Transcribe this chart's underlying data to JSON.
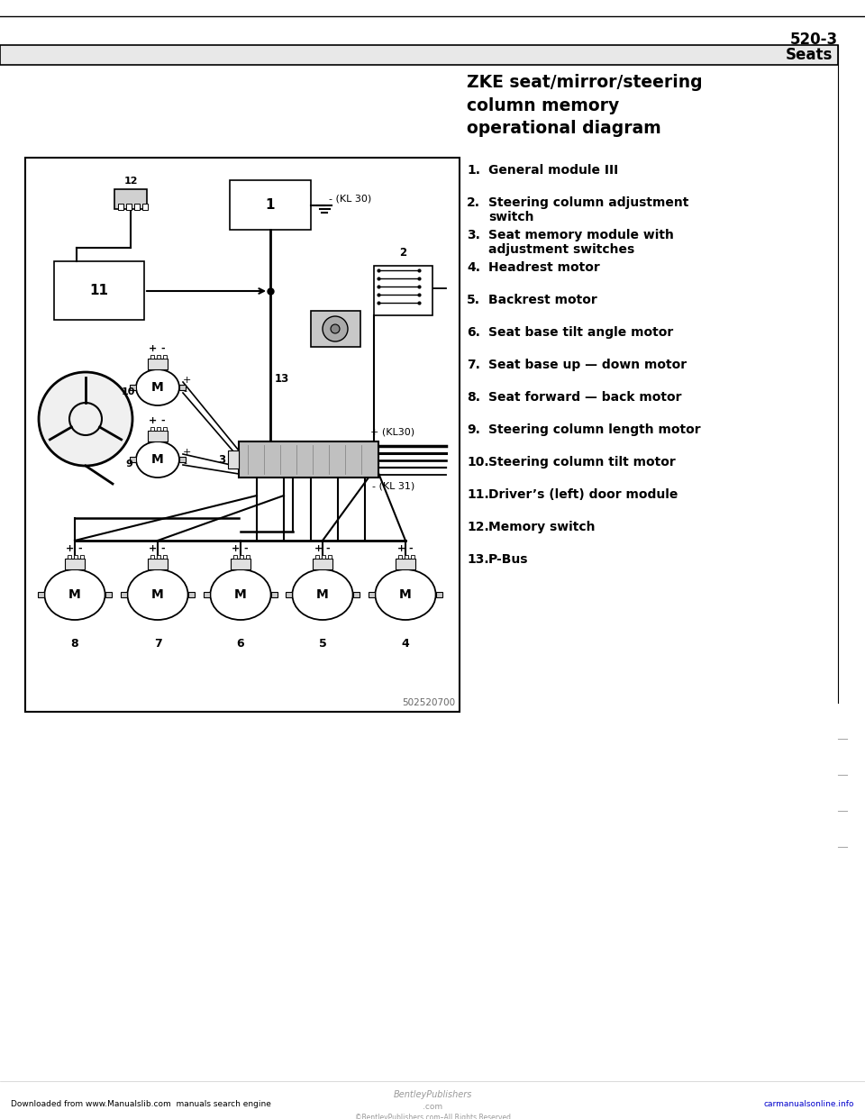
{
  "page_number": "520-3",
  "section_title": "Seats",
  "diagram_title": "ZKE seat/mirror/steering\ncolumn memory\noperational diagram",
  "legend_items": [
    {
      "num": "1.",
      "text": "General module III"
    },
    {
      "num": "2.",
      "text": "Steering column adjustment\nswitch"
    },
    {
      "num": "3.",
      "text": "Seat memory module with\nadjustment switches"
    },
    {
      "num": "4.",
      "text": "Headrest motor"
    },
    {
      "num": "5.",
      "text": "Backrest motor"
    },
    {
      "num": "6.",
      "text": "Seat base tilt angle motor"
    },
    {
      "num": "7.",
      "text": "Seat base up — down motor"
    },
    {
      "num": "8.",
      "text": "Seat forward — back motor"
    },
    {
      "num": "9.",
      "text": "Steering column length motor"
    },
    {
      "num": "10.",
      "text": "Steering column tilt motor"
    },
    {
      "num": "11.",
      "text": "Driver’s (left) door module"
    },
    {
      "num": "12.",
      "text": "Memory switch"
    },
    {
      "num": "13.",
      "text": "P-Bus"
    }
  ],
  "footer_left": "Downloaded from www.Manualslib.com  manuals search engine",
  "footer_right": "carmanualsonline.info",
  "bg_color": "#ffffff",
  "text_color": "#000000"
}
